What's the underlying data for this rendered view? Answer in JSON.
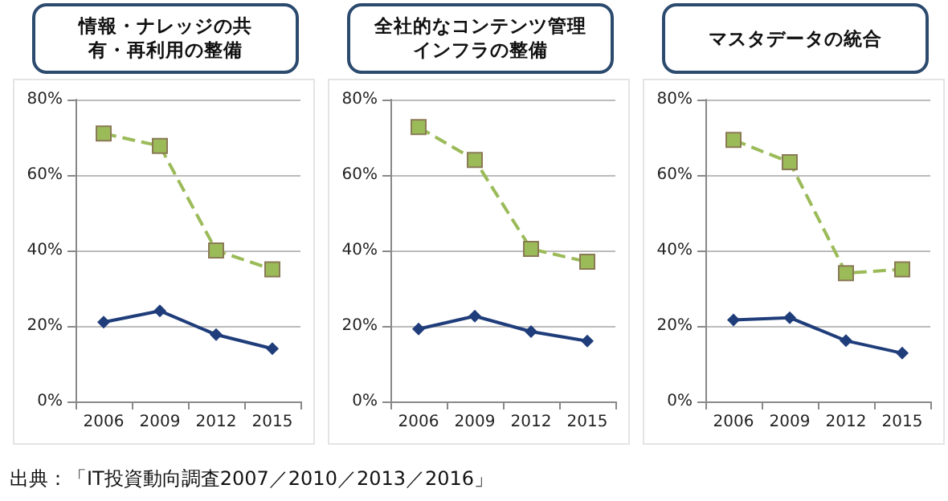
{
  "chart_data": [
    {
      "type": "line",
      "title": "情報・ナレッジの共有・再利用の整備",
      "categories": [
        "2006",
        "2009",
        "2012",
        "2015"
      ],
      "ylim": [
        0,
        80
      ],
      "yticks": [
        {
          "value": 0,
          "label": "0%"
        },
        {
          "value": 20,
          "label": "20%"
        },
        {
          "value": 40,
          "label": "40%"
        },
        {
          "value": 60,
          "label": "60%"
        },
        {
          "value": 80,
          "label": "80%"
        }
      ],
      "grid": "y",
      "annotations": [
        "出典：「IT投資動向調査2007／2010／2013／2016」"
      ],
      "series": [
        {
          "color": "#9bbb59",
          "marker": "square",
          "line_style": "dashed",
          "values": [
            71,
            67.7,
            40,
            35
          ]
        },
        {
          "color": "#1f3d7a",
          "marker": "diamond",
          "line_style": "solid",
          "values": [
            21,
            24,
            17.7,
            14
          ]
        }
      ]
    },
    {
      "type": "line",
      "title": "全社的なコンテンツ管理インフラの整備",
      "categories": [
        "2006",
        "2009",
        "2012",
        "2015"
      ],
      "ylim": [
        0,
        80
      ],
      "yticks": [
        {
          "value": 0,
          "label": "0%"
        },
        {
          "value": 20,
          "label": "20%"
        },
        {
          "value": 40,
          "label": "40%"
        },
        {
          "value": 60,
          "label": "60%"
        },
        {
          "value": 80,
          "label": "80%"
        }
      ],
      "grid": "y",
      "series": [
        {
          "color": "#9bbb59",
          "marker": "square",
          "line_style": "dashed",
          "values": [
            72.7,
            64,
            40.4,
            37
          ]
        },
        {
          "color": "#1f3d7a",
          "marker": "diamond",
          "line_style": "solid",
          "values": [
            19.2,
            22.6,
            18.5,
            16
          ]
        }
      ]
    },
    {
      "type": "line",
      "title": "マスタデータの統合",
      "categories": [
        "2006",
        "2009",
        "2012",
        "2015"
      ],
      "ylim": [
        0,
        80
      ],
      "yticks": [
        {
          "value": 0,
          "label": "0%"
        },
        {
          "value": 20,
          "label": "20%"
        },
        {
          "value": 40,
          "label": "40%"
        },
        {
          "value": 60,
          "label": "60%"
        },
        {
          "value": 80,
          "label": "80%"
        }
      ],
      "grid": "y",
      "series": [
        {
          "color": "#9bbb59",
          "marker": "square",
          "line_style": "dashed",
          "values": [
            69.3,
            63.4,
            34,
            35
          ]
        },
        {
          "color": "#1f3d7a",
          "marker": "diamond",
          "line_style": "solid",
          "values": [
            21.6,
            22.2,
            16.1,
            12.8
          ]
        }
      ]
    }
  ]
}
